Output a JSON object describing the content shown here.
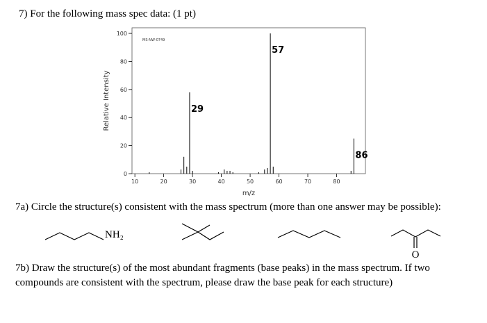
{
  "question": "7) For the following mass spec data: (1 pt)",
  "part_a": "7a) Circle the structure(s) consistent with the mass spectrum (more than one answer may be possible):",
  "part_b_line1": "7b) Draw the structure(s) of the most abundant fragments (base peaks) in the mass spectrum. If two",
  "part_b_line2": "compounds are consistent with the spectrum, please draw the base peak for each structure)",
  "structure_labels": {
    "amine": "NH₂",
    "ketone_oxygen": "O"
  },
  "chart_data": {
    "type": "spectrum",
    "code": "MS-NW-0749",
    "x_label": "m/z",
    "y_label": "Relative Intensity",
    "x": [
      15,
      26,
      27,
      28,
      29,
      30,
      39,
      41,
      42,
      43,
      44,
      53,
      55,
      56,
      57,
      58,
      85,
      86
    ],
    "values": [
      1,
      3,
      12,
      5,
      58,
      2,
      1,
      3,
      2,
      2,
      1,
      1,
      3,
      4,
      100,
      5,
      2,
      25
    ],
    "x_labels": [
      null,
      null,
      null,
      null,
      "29",
      null,
      null,
      null,
      null,
      null,
      null,
      null,
      null,
      null,
      "57",
      null,
      null,
      "86"
    ],
    "color": "#000000",
    "xlim": [
      9,
      90
    ],
    "xticks": [
      10,
      20,
      30,
      40,
      50,
      60,
      70,
      80
    ],
    "ylim": [
      0,
      104
    ],
    "yticks": [
      0,
      20,
      40,
      60,
      80,
      100
    ]
  }
}
